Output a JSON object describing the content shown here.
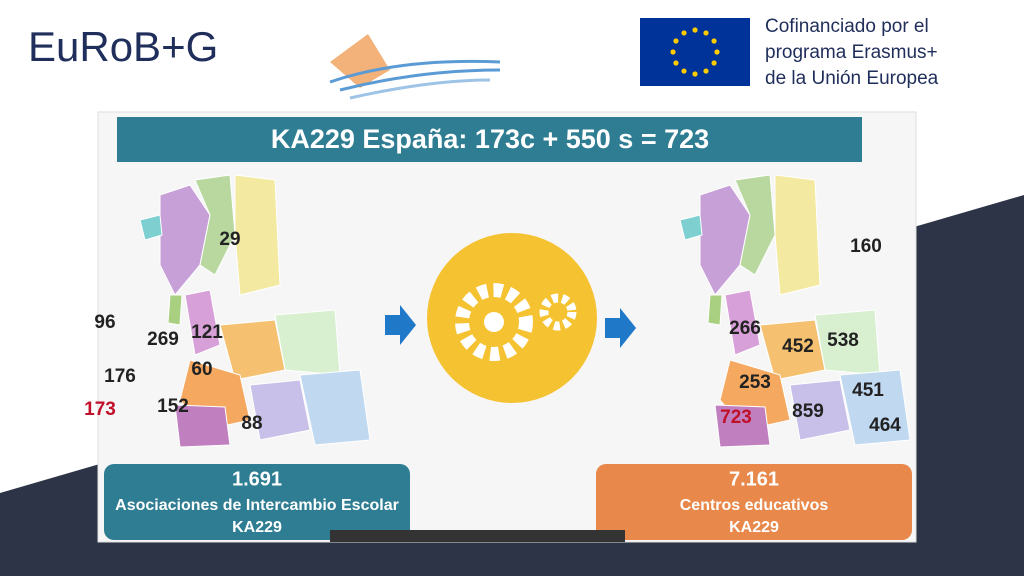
{
  "header": {
    "logo": "EuRoB+G",
    "funding": [
      "Cofinanciado por el",
      "programa Erasmus+",
      "de la Unión Europea"
    ]
  },
  "slide": {
    "title": "KA229 España: 173c + 550 s = 723",
    "left_map": {
      "labels": [
        "29",
        "96",
        "269",
        "121",
        "60",
        "176",
        "152",
        "173",
        "88"
      ]
    },
    "right_map": {
      "labels": [
        "160",
        "266",
        "452",
        "538",
        "253",
        "451",
        "723",
        "859",
        "464"
      ]
    },
    "left_box": {
      "number": "1.691",
      "line1": "Asociaciones de Intercambio Escolar",
      "line2": "KA229"
    },
    "right_box": {
      "number": "7.161",
      "line1": "Centros educativos",
      "line2": "KA229"
    }
  }
}
